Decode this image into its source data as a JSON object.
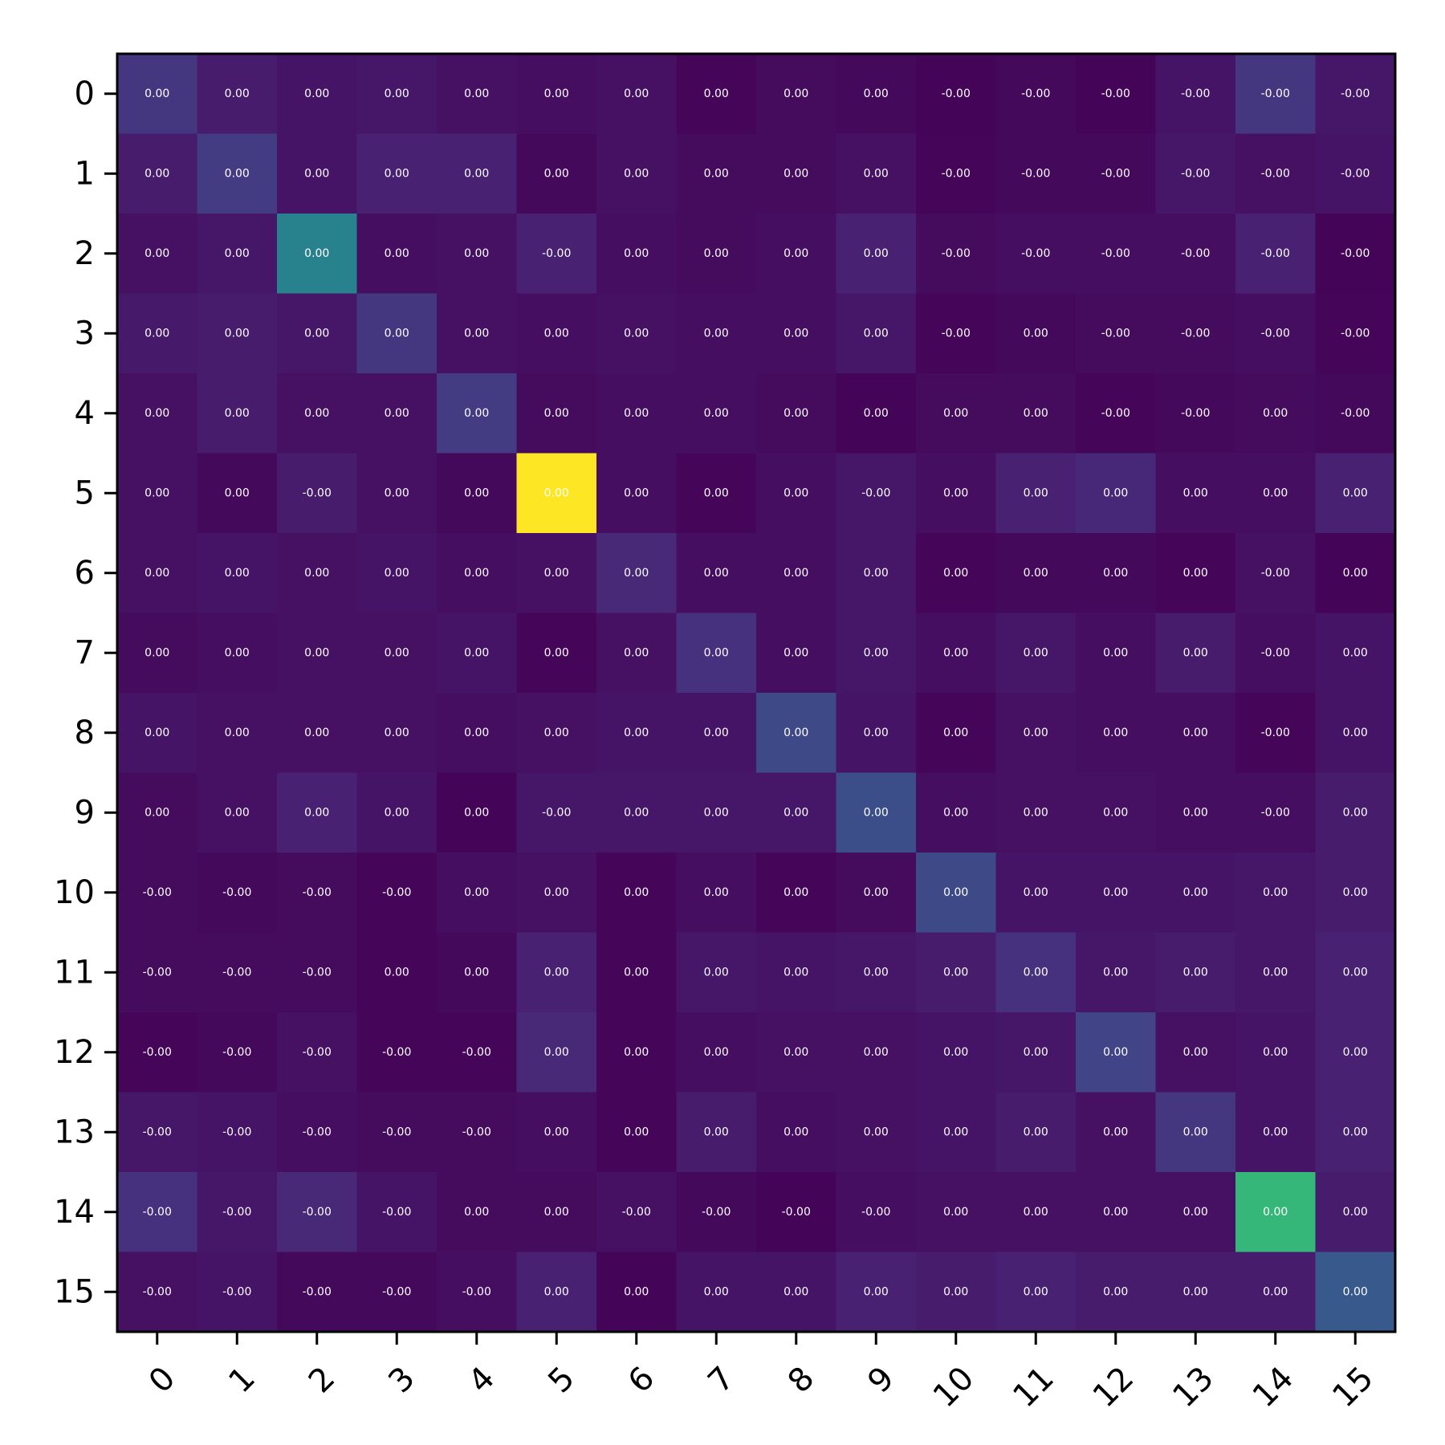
{
  "chart_data": {
    "type": "heatmap",
    "title": "",
    "xlabel": "",
    "ylabel": "",
    "x_tick_labels": [
      "0",
      "1",
      "2",
      "3",
      "4",
      "5",
      "6",
      "7",
      "8",
      "9",
      "10",
      "11",
      "12",
      "13",
      "14",
      "15"
    ],
    "y_tick_labels": [
      "0",
      "1",
      "2",
      "3",
      "4",
      "5",
      "6",
      "7",
      "8",
      "9",
      "10",
      "11",
      "12",
      "13",
      "14",
      "15"
    ],
    "colormap": "viridis",
    "color_range": [
      0,
      1
    ],
    "cell_labels": [
      [
        "0.00",
        "0.00",
        "0.00",
        "0.00",
        "0.00",
        "0.00",
        "0.00",
        "0.00",
        "0.00",
        "0.00",
        "-0.00",
        "-0.00",
        "-0.00",
        "-0.00",
        "-0.00",
        "-0.00"
      ],
      [
        "0.00",
        "0.00",
        "0.00",
        "0.00",
        "0.00",
        "0.00",
        "0.00",
        "0.00",
        "0.00",
        "0.00",
        "-0.00",
        "-0.00",
        "-0.00",
        "-0.00",
        "-0.00",
        "-0.00"
      ],
      [
        "0.00",
        "0.00",
        "0.00",
        "0.00",
        "0.00",
        "-0.00",
        "0.00",
        "0.00",
        "0.00",
        "0.00",
        "-0.00",
        "-0.00",
        "-0.00",
        "-0.00",
        "-0.00",
        "-0.00"
      ],
      [
        "0.00",
        "0.00",
        "0.00",
        "0.00",
        "0.00",
        "0.00",
        "0.00",
        "0.00",
        "0.00",
        "0.00",
        "-0.00",
        "0.00",
        "-0.00",
        "-0.00",
        "-0.00",
        "-0.00"
      ],
      [
        "0.00",
        "0.00",
        "0.00",
        "0.00",
        "0.00",
        "0.00",
        "0.00",
        "0.00",
        "0.00",
        "0.00",
        "0.00",
        "0.00",
        "-0.00",
        "-0.00",
        "0.00",
        "-0.00"
      ],
      [
        "0.00",
        "0.00",
        "-0.00",
        "0.00",
        "0.00",
        "0.00",
        "0.00",
        "0.00",
        "0.00",
        "-0.00",
        "0.00",
        "0.00",
        "0.00",
        "0.00",
        "0.00",
        "0.00"
      ],
      [
        "0.00",
        "0.00",
        "0.00",
        "0.00",
        "0.00",
        "0.00",
        "0.00",
        "0.00",
        "0.00",
        "0.00",
        "0.00",
        "0.00",
        "0.00",
        "0.00",
        "-0.00",
        "0.00"
      ],
      [
        "0.00",
        "0.00",
        "0.00",
        "0.00",
        "0.00",
        "0.00",
        "0.00",
        "0.00",
        "0.00",
        "0.00",
        "0.00",
        "0.00",
        "0.00",
        "0.00",
        "-0.00",
        "0.00"
      ],
      [
        "0.00",
        "0.00",
        "0.00",
        "0.00",
        "0.00",
        "0.00",
        "0.00",
        "0.00",
        "0.00",
        "0.00",
        "0.00",
        "0.00",
        "0.00",
        "0.00",
        "-0.00",
        "0.00"
      ],
      [
        "0.00",
        "0.00",
        "0.00",
        "0.00",
        "0.00",
        "-0.00",
        "0.00",
        "0.00",
        "0.00",
        "0.00",
        "0.00",
        "0.00",
        "0.00",
        "0.00",
        "-0.00",
        "0.00"
      ],
      [
        "-0.00",
        "-0.00",
        "-0.00",
        "-0.00",
        "0.00",
        "0.00",
        "0.00",
        "0.00",
        "0.00",
        "0.00",
        "0.00",
        "0.00",
        "0.00",
        "0.00",
        "0.00",
        "0.00"
      ],
      [
        "-0.00",
        "-0.00",
        "-0.00",
        "0.00",
        "0.00",
        "0.00",
        "0.00",
        "0.00",
        "0.00",
        "0.00",
        "0.00",
        "0.00",
        "0.00",
        "0.00",
        "0.00",
        "0.00"
      ],
      [
        "-0.00",
        "-0.00",
        "-0.00",
        "-0.00",
        "-0.00",
        "0.00",
        "0.00",
        "0.00",
        "0.00",
        "0.00",
        "0.00",
        "0.00",
        "0.00",
        "0.00",
        "0.00",
        "0.00"
      ],
      [
        "-0.00",
        "-0.00",
        "-0.00",
        "-0.00",
        "-0.00",
        "0.00",
        "0.00",
        "0.00",
        "0.00",
        "0.00",
        "0.00",
        "0.00",
        "0.00",
        "0.00",
        "0.00",
        "0.00"
      ],
      [
        "-0.00",
        "-0.00",
        "-0.00",
        "-0.00",
        "0.00",
        "0.00",
        "-0.00",
        "-0.00",
        "-0.00",
        "-0.00",
        "0.00",
        "0.00",
        "0.00",
        "0.00",
        "0.00",
        "0.00"
      ],
      [
        "-0.00",
        "-0.00",
        "-0.00",
        "-0.00",
        "-0.00",
        "0.00",
        "0.00",
        "0.00",
        "0.00",
        "0.00",
        "0.00",
        "0.00",
        "0.00",
        "0.00",
        "0.00",
        "0.00"
      ]
    ],
    "color_intensity": [
      [
        0.2,
        0.1,
        0.07,
        0.08,
        0.06,
        0.05,
        0.06,
        0.02,
        0.04,
        0.03,
        0.01,
        0.03,
        0.01,
        0.07,
        0.2,
        0.08
      ],
      [
        0.1,
        0.22,
        0.07,
        0.12,
        0.12,
        0.03,
        0.06,
        0.04,
        0.04,
        0.06,
        0.02,
        0.03,
        0.03,
        0.08,
        0.06,
        0.07
      ],
      [
        0.06,
        0.08,
        0.55,
        0.05,
        0.06,
        0.12,
        0.05,
        0.04,
        0.05,
        0.12,
        0.04,
        0.05,
        0.05,
        0.05,
        0.12,
        0.01
      ],
      [
        0.09,
        0.1,
        0.08,
        0.2,
        0.06,
        0.05,
        0.06,
        0.05,
        0.05,
        0.08,
        0.02,
        0.03,
        0.04,
        0.04,
        0.05,
        0.02
      ],
      [
        0.06,
        0.1,
        0.06,
        0.06,
        0.22,
        0.04,
        0.05,
        0.05,
        0.04,
        0.01,
        0.04,
        0.04,
        0.02,
        0.03,
        0.04,
        0.03
      ],
      [
        0.06,
        0.03,
        0.1,
        0.06,
        0.03,
        1.0,
        0.05,
        0.02,
        0.05,
        0.08,
        0.05,
        0.12,
        0.14,
        0.05,
        0.05,
        0.12
      ],
      [
        0.06,
        0.07,
        0.06,
        0.07,
        0.05,
        0.06,
        0.15,
        0.05,
        0.05,
        0.08,
        0.02,
        0.03,
        0.03,
        0.02,
        0.06,
        0.01
      ],
      [
        0.04,
        0.05,
        0.06,
        0.06,
        0.07,
        0.02,
        0.06,
        0.18,
        0.05,
        0.08,
        0.05,
        0.08,
        0.05,
        0.1,
        0.05,
        0.07
      ],
      [
        0.07,
        0.06,
        0.06,
        0.06,
        0.05,
        0.06,
        0.07,
        0.07,
        0.28,
        0.07,
        0.02,
        0.06,
        0.05,
        0.05,
        0.02,
        0.07
      ],
      [
        0.04,
        0.06,
        0.12,
        0.07,
        0.01,
        0.08,
        0.08,
        0.08,
        0.08,
        0.3,
        0.05,
        0.06,
        0.06,
        0.05,
        0.05,
        0.1
      ],
      [
        0.04,
        0.03,
        0.04,
        0.02,
        0.05,
        0.06,
        0.02,
        0.05,
        0.02,
        0.04,
        0.28,
        0.07,
        0.07,
        0.07,
        0.08,
        0.1
      ],
      [
        0.04,
        0.04,
        0.04,
        0.02,
        0.03,
        0.12,
        0.02,
        0.08,
        0.07,
        0.08,
        0.1,
        0.18,
        0.08,
        0.1,
        0.08,
        0.12
      ],
      [
        0.02,
        0.03,
        0.06,
        0.02,
        0.02,
        0.15,
        0.02,
        0.05,
        0.06,
        0.06,
        0.07,
        0.08,
        0.25,
        0.06,
        0.07,
        0.12
      ],
      [
        0.08,
        0.07,
        0.05,
        0.04,
        0.04,
        0.05,
        0.02,
        0.1,
        0.05,
        0.06,
        0.07,
        0.1,
        0.06,
        0.2,
        0.07,
        0.12
      ],
      [
        0.18,
        0.08,
        0.15,
        0.07,
        0.04,
        0.04,
        0.06,
        0.03,
        0.01,
        0.05,
        0.06,
        0.06,
        0.06,
        0.06,
        0.75,
        0.1
      ],
      [
        0.06,
        0.07,
        0.03,
        0.03,
        0.05,
        0.12,
        0.01,
        0.07,
        0.07,
        0.12,
        0.1,
        0.12,
        0.1,
        0.1,
        0.1,
        0.35
      ]
    ]
  }
}
